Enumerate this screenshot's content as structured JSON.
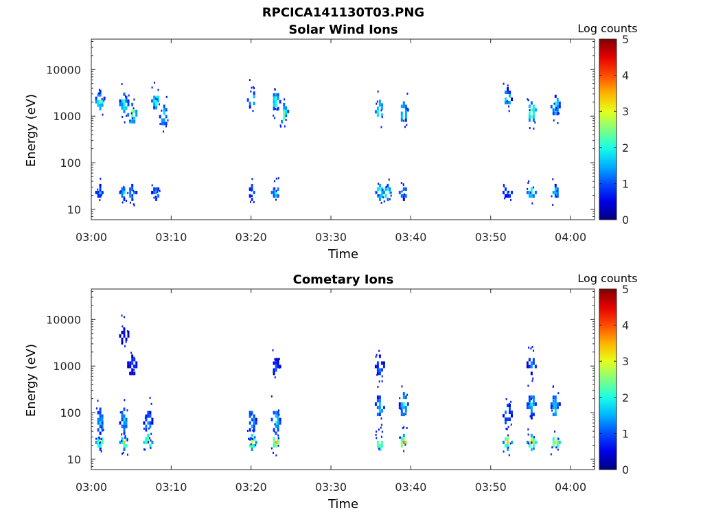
{
  "page_title": "RPCICA141130T03.PNG",
  "chart_data": [
    {
      "type": "heatmap",
      "title": "Solar Wind Ions",
      "xlabel": "Time",
      "ylabel": "Energy (eV)",
      "x_range": [
        "03:00",
        "04:03"
      ],
      "y_range": [
        6,
        45000
      ],
      "y_scale": "log",
      "x_ticks": [
        "03:00",
        "03:10",
        "03:20",
        "03:30",
        "03:40",
        "03:50",
        "04:00"
      ],
      "y_ticks": [
        "10",
        "100",
        "1000",
        "10000"
      ],
      "colorbar": {
        "label": "Log counts",
        "min": 0,
        "max": 5,
        "ticks": [
          "0",
          "1",
          "2",
          "3",
          "4",
          "5"
        ]
      },
      "grid": false,
      "bursts": [
        {
          "t": "03:01",
          "beams": [
            {
              "energy": 2300,
              "log_counts": 2.3
            },
            {
              "energy": 25,
              "log_counts": 1.5
            }
          ]
        },
        {
          "t": "03:04",
          "beams": [
            {
              "energy": 2000,
              "log_counts": 2.2
            },
            {
              "energy": 25,
              "log_counts": 1.8
            }
          ]
        },
        {
          "t": "03:05",
          "beams": [
            {
              "energy": 1200,
              "log_counts": 2.8
            },
            {
              "energy": 25,
              "log_counts": 1.8
            }
          ]
        },
        {
          "t": "03:08",
          "beams": [
            {
              "energy": 2400,
              "log_counts": 2.3
            },
            {
              "energy": 25,
              "log_counts": 1.5
            }
          ]
        },
        {
          "t": "03:09",
          "beams": [
            {
              "energy": 1100,
              "log_counts": 1.9
            }
          ]
        },
        {
          "t": "03:20",
          "beams": [
            {
              "energy": 2500,
              "log_counts": 2.0
            },
            {
              "energy": 25,
              "log_counts": 1.6
            }
          ]
        },
        {
          "t": "03:23",
          "beams": [
            {
              "energy": 2300,
              "log_counts": 2.2
            },
            {
              "energy": 25,
              "log_counts": 2.0
            }
          ]
        },
        {
          "t": "03:24",
          "beams": [
            {
              "energy": 1200,
              "log_counts": 2.6
            }
          ]
        },
        {
          "t": "03:36",
          "beams": [
            {
              "energy": 1400,
              "log_counts": 2.5
            },
            {
              "energy": 25,
              "log_counts": 2.5
            }
          ]
        },
        {
          "t": "03:37",
          "beams": [
            {
              "energy": 25,
              "log_counts": 2.5
            }
          ]
        },
        {
          "t": "03:39",
          "beams": [
            {
              "energy": 1300,
              "log_counts": 2.2
            },
            {
              "energy": 25,
              "log_counts": 1.8
            }
          ]
        },
        {
          "t": "03:52",
          "beams": [
            {
              "energy": 2600,
              "log_counts": 2.0
            },
            {
              "energy": 25,
              "log_counts": 1.4
            }
          ]
        },
        {
          "t": "03:55",
          "beams": [
            {
              "energy": 1300,
              "log_counts": 2.8
            },
            {
              "energy": 25,
              "log_counts": 2.3
            }
          ]
        },
        {
          "t": "03:58",
          "beams": [
            {
              "energy": 1800,
              "log_counts": 2.2
            },
            {
              "energy": 25,
              "log_counts": 1.8
            }
          ]
        }
      ]
    },
    {
      "type": "heatmap",
      "title": "Cometary Ions",
      "xlabel": "Time",
      "ylabel": "Energy (eV)",
      "x_range": [
        "03:00",
        "04:03"
      ],
      "y_range": [
        6,
        45000
      ],
      "y_scale": "log",
      "x_ticks": [
        "03:00",
        "03:10",
        "03:20",
        "03:30",
        "03:40",
        "03:50",
        "04:00"
      ],
      "y_ticks": [
        "10",
        "100",
        "1000",
        "10000"
      ],
      "colorbar": {
        "label": "Log counts",
        "min": 0,
        "max": 5,
        "ticks": [
          "0",
          "1",
          "2",
          "3",
          "4",
          "5"
        ]
      },
      "grid": false,
      "bursts": [
        {
          "t": "03:01",
          "beams": [
            {
              "energy": 25,
              "log_counts": 3.0
            },
            {
              "energy": 70,
              "log_counts": 1.6
            }
          ]
        },
        {
          "t": "03:04",
          "beams": [
            {
              "energy": 25,
              "log_counts": 3.2
            },
            {
              "energy": 70,
              "log_counts": 1.7
            },
            {
              "energy": 5000,
              "log_counts": 0.6
            }
          ]
        },
        {
          "t": "03:05",
          "beams": [
            {
              "energy": 1100,
              "log_counts": 1.0
            }
          ]
        },
        {
          "t": "03:07",
          "beams": [
            {
              "energy": 25,
              "log_counts": 3.3
            },
            {
              "energy": 70,
              "log_counts": 1.6
            }
          ]
        },
        {
          "t": "03:20",
          "beams": [
            {
              "energy": 25,
              "log_counts": 3.3
            },
            {
              "energy": 70,
              "log_counts": 1.8
            }
          ]
        },
        {
          "t": "03:23",
          "beams": [
            {
              "energy": 25,
              "log_counts": 3.4
            },
            {
              "energy": 70,
              "log_counts": 1.9
            },
            {
              "energy": 1100,
              "log_counts": 1.0
            }
          ]
        },
        {
          "t": "03:36",
          "beams": [
            {
              "energy": 25,
              "log_counts": 3.4
            },
            {
              "energy": 150,
              "log_counts": 1.8
            },
            {
              "energy": 1100,
              "log_counts": 1.2
            }
          ]
        },
        {
          "t": "03:39",
          "beams": [
            {
              "energy": 25,
              "log_counts": 3.6
            },
            {
              "energy": 150,
              "log_counts": 1.9
            }
          ]
        },
        {
          "t": "03:52",
          "beams": [
            {
              "energy": 25,
              "log_counts": 3.3
            },
            {
              "energy": 100,
              "log_counts": 1.5
            }
          ]
        },
        {
          "t": "03:55",
          "beams": [
            {
              "energy": 25,
              "log_counts": 3.5
            },
            {
              "energy": 150,
              "log_counts": 1.8
            },
            {
              "energy": 1100,
              "log_counts": 1.2
            }
          ]
        },
        {
          "t": "03:58",
          "beams": [
            {
              "energy": 25,
              "log_counts": 3.5
            },
            {
              "energy": 150,
              "log_counts": 1.9
            }
          ]
        }
      ]
    }
  ]
}
